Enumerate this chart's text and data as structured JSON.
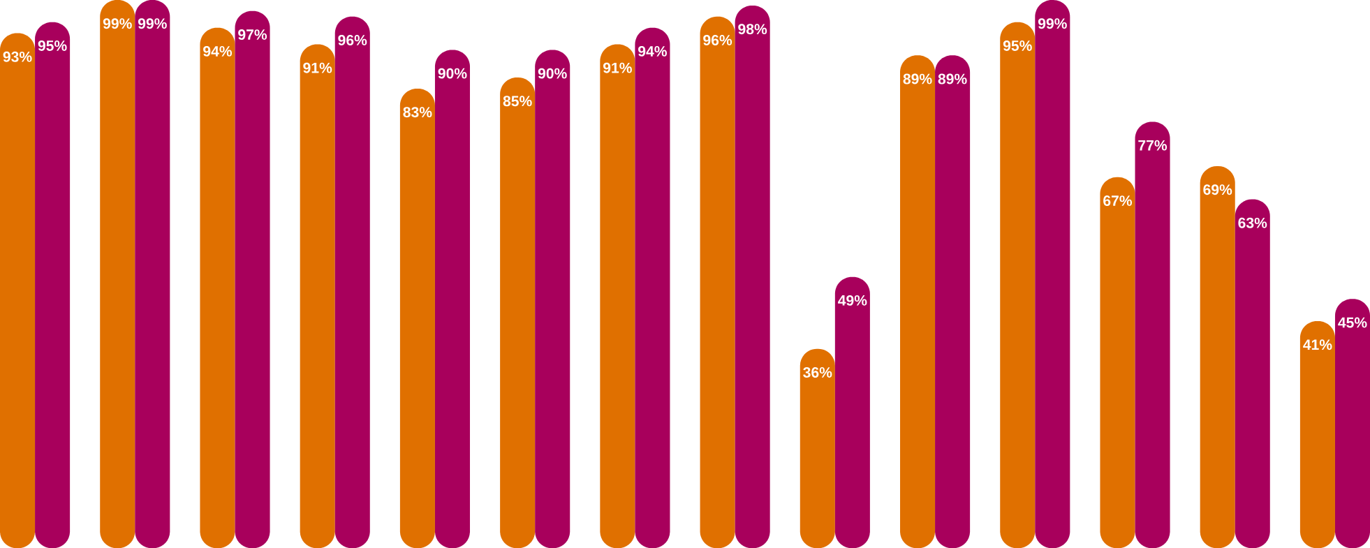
{
  "chart_data": {
    "type": "bar",
    "categories": [
      null,
      null,
      null,
      null,
      null,
      null,
      null,
      null,
      null,
      null,
      null,
      null,
      null,
      null
    ],
    "series": [
      {
        "color": "#e07000",
        "values": [
          93,
          99,
          94,
          91,
          83,
          85,
          91,
          96,
          36,
          89,
          95,
          67,
          69,
          41
        ],
        "value_labels": [
          "93%",
          "99%",
          "94%",
          "91%",
          "83%",
          "85%",
          "91%",
          "96%",
          "36%",
          "89%",
          "95%",
          "67%",
          "69%",
          "41%"
        ]
      },
      {
        "color": "#a8005c",
        "values": [
          95,
          99,
          97,
          96,
          90,
          90,
          94,
          98,
          49,
          89,
          99,
          77,
          63,
          45
        ],
        "value_labels": [
          "95%",
          "99%",
          "97%",
          "96%",
          "90%",
          "90%",
          "94%",
          "98%",
          "49%",
          "89%",
          "99%",
          "77%",
          "63%",
          "45%"
        ]
      }
    ]
  }
}
